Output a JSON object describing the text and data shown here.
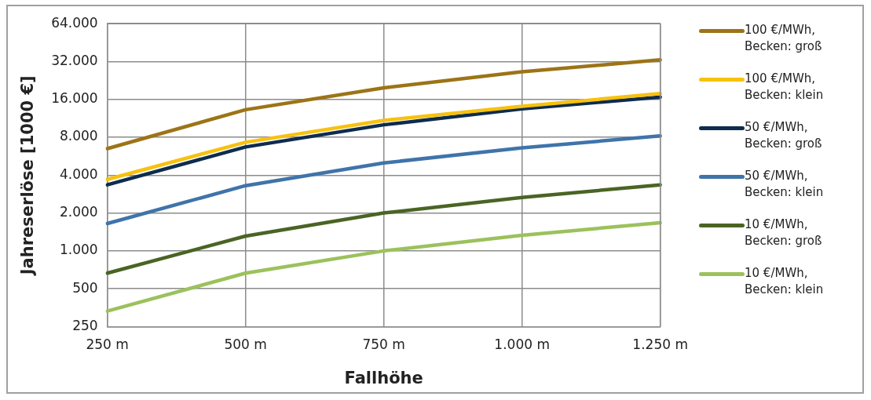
{
  "chart_data": {
    "type": "line",
    "xlabel": "Fallhöhe",
    "ylabel": "Jahreserlöse [1000 €]",
    "categories": [
      "250 m",
      "500 m",
      "750 m",
      "1.000 m",
      "1.250 m"
    ],
    "series": [
      {
        "name": "100 €/MWh, Becken: groß",
        "color": "#9c7417",
        "values": [
          6500,
          13250,
          19800,
          26500,
          33000
        ]
      },
      {
        "name": "100 €/MWh, Becken: klein",
        "color": "#f7c10f",
        "values": [
          3700,
          7300,
          10900,
          14100,
          17800
        ]
      },
      {
        "name": "50 €/MWh, Becken: groß",
        "color": "#0d2c4f",
        "values": [
          3350,
          6700,
          10050,
          13450,
          16700
        ]
      },
      {
        "name": "50 €/MWh, Becken: klein",
        "color": "#3f74aa",
        "values": [
          1650,
          3300,
          5000,
          6600,
          8200
        ]
      },
      {
        "name": "10 €/MWh, Becken: groß",
        "color": "#4a6424",
        "values": [
          665,
          1310,
          2000,
          2660,
          3350
        ]
      },
      {
        "name": "10 €/MWh, Becken: klein",
        "color": "#9cc15c",
        "values": [
          332,
          665,
          1000,
          1330,
          1675
        ]
      }
    ],
    "ylim": [
      250,
      64000
    ],
    "yticks": [
      {
        "value": 250,
        "label": "250"
      },
      {
        "value": 500,
        "label": "500"
      },
      {
        "value": 1000,
        "label": "1.000"
      },
      {
        "value": 2000,
        "label": "2.000"
      },
      {
        "value": 4000,
        "label": "4.000"
      },
      {
        "value": 8000,
        "label": "8.000"
      },
      {
        "value": 16000,
        "label": "16.000"
      },
      {
        "value": 32000,
        "label": "32.000"
      },
      {
        "value": 64000,
        "label": "64.000"
      }
    ],
    "log": "y",
    "grid": true,
    "legend": "right",
    "marker": "none",
    "line_style": "solid"
  }
}
